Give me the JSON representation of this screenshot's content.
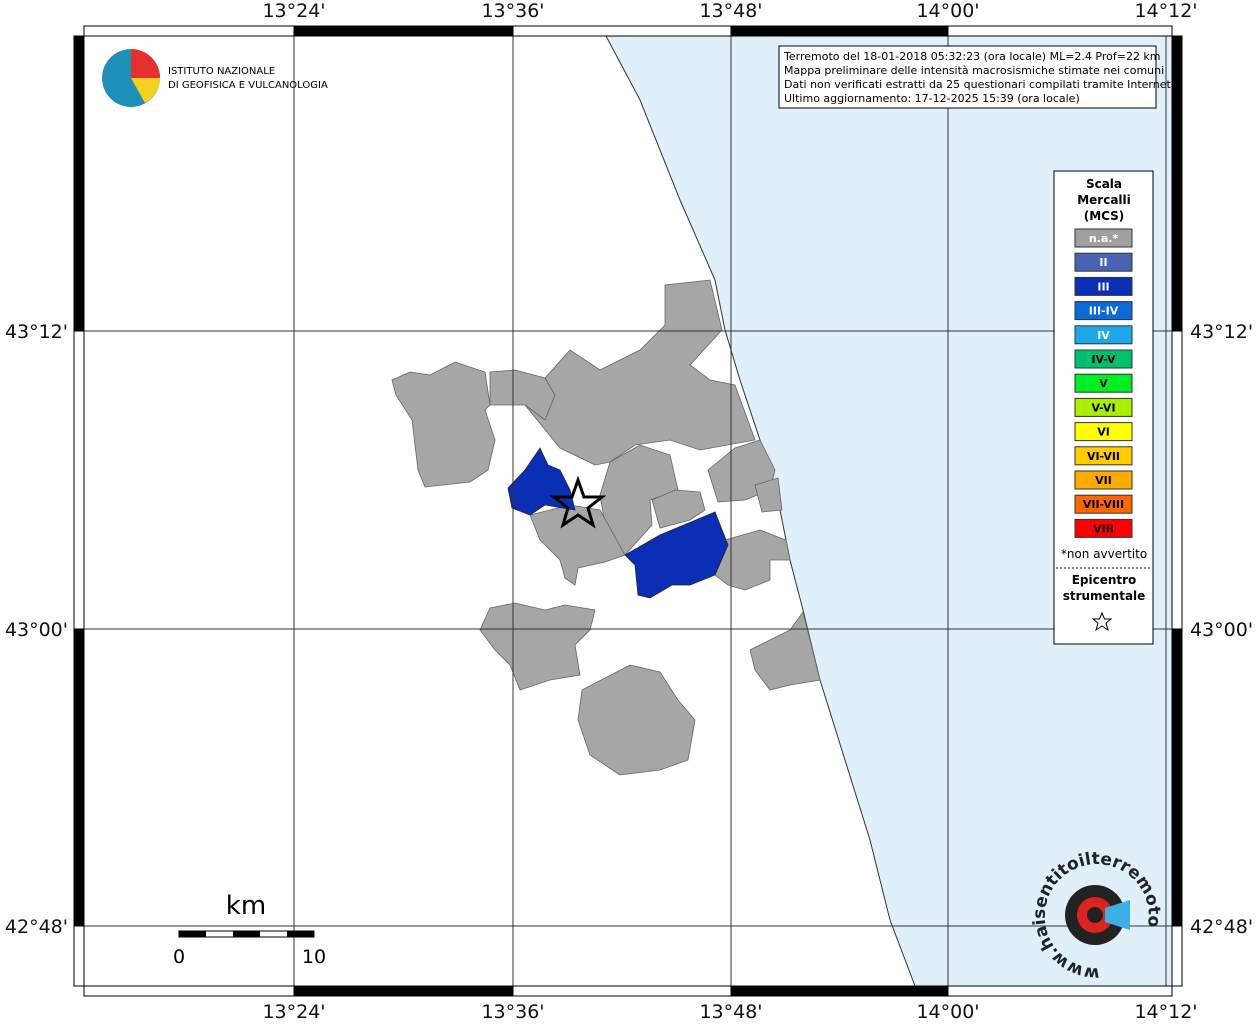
{
  "map": {
    "lon_labels": [
      "13°24'",
      "13°36'",
      "13°48'",
      "14°00'",
      "14°12'"
    ],
    "lat_labels": [
      "43°12'",
      "43°00'",
      "42°48'"
    ],
    "info_lines": [
      "Terremoto del 18-01-2018 05:32:23 (ora locale) ML=2.4 Prof=22 km",
      "Mappa preliminare delle intensità macrosismiche stimate nei comuni",
      "Dati non verificati estratti da 25 questionari compilati tramite Internet.",
      "Ultimo aggiornamento: 17-12-2025 15:39 (ora locale)"
    ],
    "logo_lines": [
      "ISTITUTO NAZIONALE",
      "DI GEOFISICA E VULCANOLOGIA"
    ],
    "legend": {
      "title_lines": [
        "Scala",
        "Mercalli",
        "(MCS)"
      ],
      "items": [
        {
          "label": "n.a.*",
          "color": "#a0a0a0"
        },
        {
          "label": "II",
          "color": "#4a64b4"
        },
        {
          "label": "III",
          "color": "#0a2fb5"
        },
        {
          "label": "III-IV",
          "color": "#0a6ad6"
        },
        {
          "label": "IV",
          "color": "#1ea8ea"
        },
        {
          "label": "IV-V",
          "color": "#00c070"
        },
        {
          "label": "V",
          "color": "#00ee22"
        },
        {
          "label": "V-VI",
          "color": "#aaee00"
        },
        {
          "label": "VI",
          "color": "#ffff00"
        },
        {
          "label": "VI-VII",
          "color": "#ffcc00"
        },
        {
          "label": "VII",
          "color": "#ffaa00"
        },
        {
          "label": "VII-VIII",
          "color": "#ff6600"
        },
        {
          "label": "VIII",
          "color": "#ff0000"
        }
      ],
      "note": "*non avvertito",
      "epicenter_lines": [
        "Epicentro",
        "strumentale"
      ]
    },
    "scale": {
      "unit": "km",
      "start": "0",
      "end": "10"
    },
    "site_logo": "www.haisentitoilterremoto.it"
  }
}
